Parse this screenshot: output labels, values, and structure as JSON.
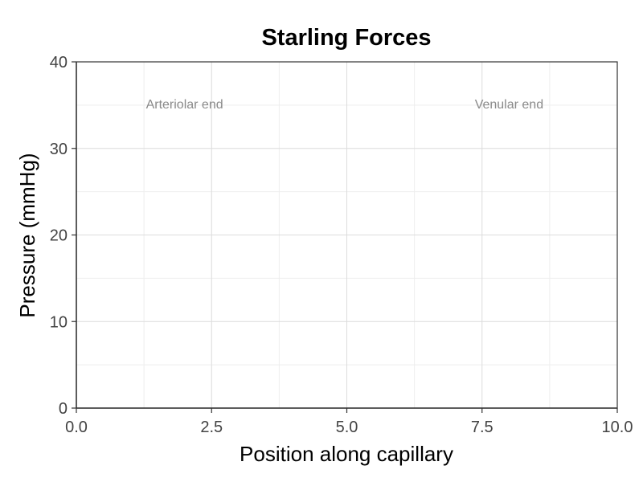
{
  "chart_data": {
    "type": "line",
    "title": "Starling Forces",
    "xlabel": "Position along capillary",
    "ylabel": "Pressure (mmHg)",
    "xlim": [
      0,
      10
    ],
    "ylim": [
      0,
      40
    ],
    "x_ticks": [
      0,
      2.5,
      5,
      7.5,
      10
    ],
    "x_tick_labels": [
      "0.0",
      "2.5",
      "5.0",
      "7.5",
      "10.0"
    ],
    "y_ticks": [
      0,
      10,
      20,
      30,
      40
    ],
    "y_tick_labels": [
      "0",
      "10",
      "20",
      "30",
      "40"
    ],
    "grid": true,
    "series": [],
    "annotations": [
      {
        "text": "Arteriolar end",
        "x": 2,
        "y": 35
      },
      {
        "text": "Venular end",
        "x": 8,
        "y": 35
      }
    ]
  },
  "colors": {
    "grid_major": "#dcdcdc",
    "grid_minor": "#eeeeee",
    "axis": "#333333",
    "annotation": "#8a8a8a"
  }
}
